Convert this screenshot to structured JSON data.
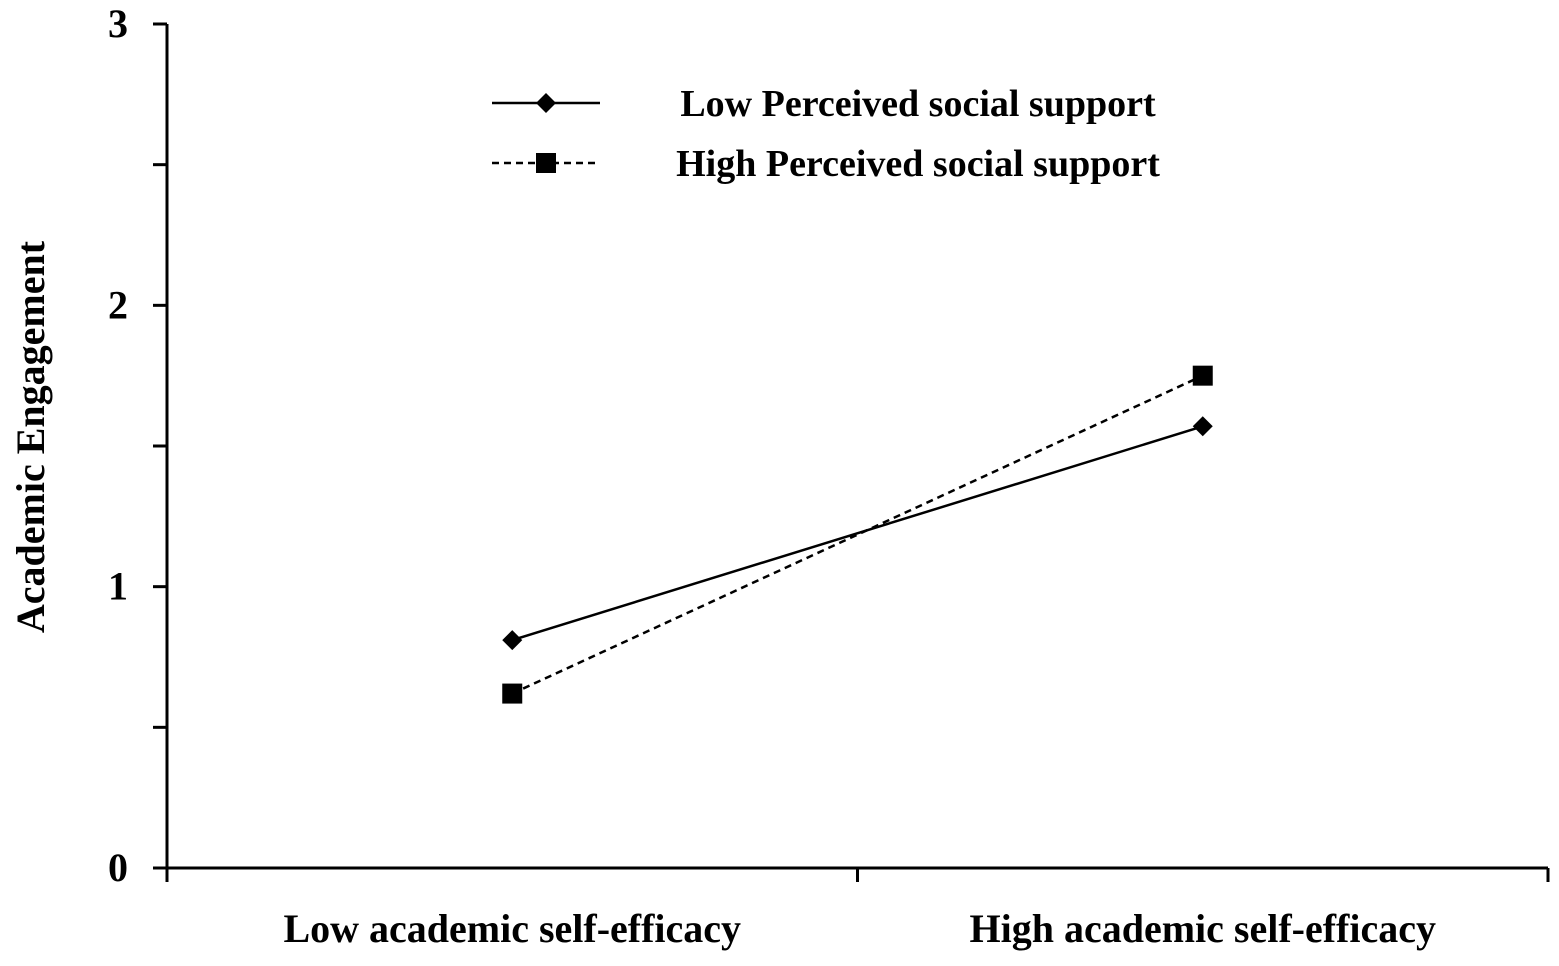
{
  "chart_data": {
    "type": "line",
    "title": "",
    "xlabel": "",
    "ylabel": "Academic Engagement",
    "categories": [
      "Low academic self-efficacy",
      "High academic self-efficacy"
    ],
    "yticks": [
      "0",
      "1",
      "2",
      "3"
    ],
    "ylim": [
      0,
      3
    ],
    "grid": false,
    "legend_position": "top-center",
    "series": [
      {
        "name": "Low Perceived social support",
        "values": [
          0.81,
          1.57
        ],
        "marker": "diamond",
        "line": "solid",
        "color": "#000000"
      },
      {
        "name": "High Perceived social support",
        "values": [
          0.62,
          1.75
        ],
        "marker": "square",
        "line": "dashed",
        "color": "#000000"
      }
    ]
  }
}
